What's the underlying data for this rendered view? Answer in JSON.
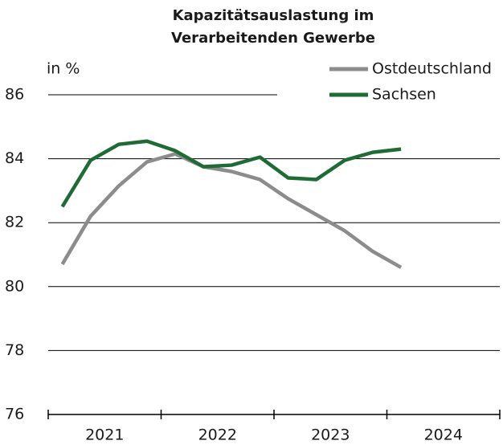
{
  "chart_data": {
    "type": "line",
    "title": [
      "Kapazitätsauslastung im",
      "Verarbeitenden Gewerbe"
    ],
    "y_label": "in %",
    "x": [
      2021.125,
      2021.375,
      2021.625,
      2021.875,
      2022.125,
      2022.375,
      2022.625,
      2022.875,
      2023.125,
      2023.375,
      2023.625,
      2023.875,
      2024.125
    ],
    "x_categories": [
      "2021",
      "2022",
      "2023",
      "2024"
    ],
    "xlim": [
      2021,
      2025
    ],
    "xticks": [
      2021,
      2022,
      2023,
      2024,
      2025
    ],
    "ylim": [
      76,
      86
    ],
    "yticks": [
      76,
      78,
      80,
      82,
      84,
      86
    ],
    "grid": true,
    "legend": "top-right",
    "series": [
      {
        "name": "Ostdeutschland",
        "color": "#8c8c8c",
        "values": [
          80.7,
          82.2,
          83.15,
          83.9,
          84.15,
          83.75,
          83.6,
          83.35,
          82.75,
          82.25,
          81.75,
          81.1,
          80.6
        ]
      },
      {
        "name": "Sachsen",
        "color": "#1f6b36",
        "values": [
          82.5,
          83.95,
          84.45,
          84.55,
          84.25,
          83.75,
          83.8,
          84.05,
          83.4,
          83.35,
          83.95,
          84.2,
          84.3
        ]
      }
    ]
  }
}
